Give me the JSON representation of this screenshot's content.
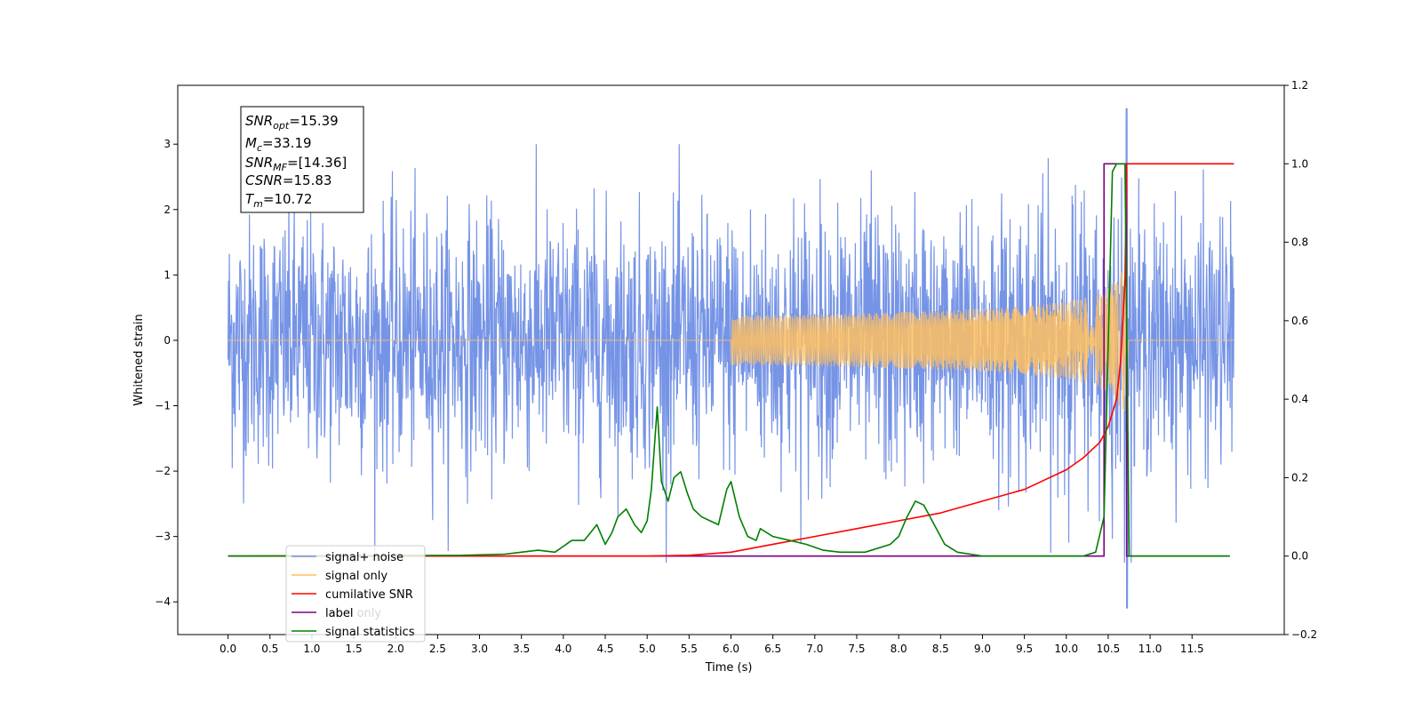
{
  "chart_data": {
    "type": "line",
    "xlabel": "Time (s)",
    "ylabel": "Whitened strain",
    "xlim": [
      -0.6,
      12.6
    ],
    "ylim_left": [
      -4.5,
      3.9
    ],
    "ylim_right": [
      -0.2,
      1.2
    ],
    "xticks": [
      "0.0",
      "0.5",
      "1.0",
      "1.5",
      "2.0",
      "2.5",
      "3.0",
      "3.5",
      "4.0",
      "4.5",
      "5.0",
      "5.5",
      "6.0",
      "6.5",
      "7.0",
      "7.5",
      "8.0",
      "8.5",
      "9.0",
      "9.5",
      "10.0",
      "10.5",
      "11.0",
      "11.5"
    ],
    "yticks_left": [
      "3",
      "2",
      "1",
      "0",
      "−1",
      "−2",
      "−3",
      "−4"
    ],
    "yticks_right": [
      "1.2",
      "1.0",
      "0.8",
      "0.6",
      "0.4",
      "0.2",
      "0.0",
      "−0.2"
    ],
    "annotation": {
      "snr_opt": {
        "sym": "SNR",
        "sub": "opt",
        "val": "=15.39"
      },
      "mc": {
        "sym": "M",
        "sub": "c",
        "val": "=33.19"
      },
      "snr_mf": {
        "sym": "SNR",
        "sub": "MF",
        "val": "=[14.36]"
      },
      "csnr": {
        "sym": "CSNR",
        "sub": "",
        "val": "=15.83"
      },
      "tm": {
        "sym": "T",
        "sub": "m",
        "val": "=10.72"
      }
    },
    "legend": {
      "placement": "lower-left",
      "entries": [
        {
          "label": "signal+ noise",
          "color": "#6f8ee5"
        },
        {
          "label": "signal only",
          "color": "#ffbf60"
        },
        {
          "label": "cumilative SNR",
          "color": "#ff0000"
        },
        {
          "label": "label",
          "color": "#800080"
        },
        {
          "label": "signal statistics",
          "color": "#008000"
        }
      ],
      "hidden_text": "label only"
    },
    "series": [
      {
        "name": "signal+ noise",
        "axis": "left",
        "color": "#6f8ee5",
        "envelope_sigma": 1.0,
        "x_range": [
          0.0,
          12.0
        ],
        "spike": {
          "x": 10.72,
          "max": 3.55,
          "min": -4.1
        }
      },
      {
        "name": "signal only",
        "axis": "left",
        "color": "#ffbf60",
        "chirp_start": 6.0,
        "merger": 10.72,
        "peak_amp": 1.3
      },
      {
        "name": "cumilative SNR",
        "axis": "right",
        "x": [
          0.0,
          3.0,
          4.0,
          5.0,
          5.5,
          6.0,
          6.5,
          7.0,
          7.5,
          8.0,
          8.5,
          9.0,
          9.5,
          10.0,
          10.2,
          10.4,
          10.5,
          10.6,
          10.65,
          10.7,
          10.72,
          12.0
        ],
        "y": [
          0.0,
          0.0,
          0.0,
          0.0,
          0.002,
          0.01,
          0.03,
          0.05,
          0.07,
          0.09,
          0.11,
          0.14,
          0.17,
          0.22,
          0.25,
          0.29,
          0.33,
          0.4,
          0.5,
          0.7,
          1.0,
          1.0
        ]
      },
      {
        "name": "label",
        "axis": "right",
        "x": [
          0.0,
          10.45,
          10.45,
          10.72,
          10.72,
          11.95
        ],
        "y": [
          0.0,
          0.0,
          1.0,
          1.0,
          0.0,
          0.0
        ]
      },
      {
        "name": "signal statistics",
        "axis": "right",
        "x": [
          0.0,
          2.8,
          3.3,
          3.5,
          3.7,
          3.9,
          4.1,
          4.25,
          4.4,
          4.5,
          4.58,
          4.65,
          4.75,
          4.85,
          4.93,
          5.0,
          5.05,
          5.12,
          5.17,
          5.25,
          5.32,
          5.4,
          5.48,
          5.55,
          5.65,
          5.75,
          5.85,
          5.95,
          6.0,
          6.1,
          6.2,
          6.3,
          6.35,
          6.5,
          6.7,
          6.9,
          7.1,
          7.3,
          7.6,
          7.9,
          8.0,
          8.1,
          8.2,
          8.3,
          8.4,
          8.55,
          8.7,
          9.0,
          10.2,
          10.35,
          10.45,
          10.55,
          10.6,
          10.7,
          10.75,
          10.8,
          11.95
        ],
        "y": [
          0.0,
          0.002,
          0.005,
          0.01,
          0.015,
          0.01,
          0.04,
          0.04,
          0.08,
          0.03,
          0.06,
          0.1,
          0.12,
          0.08,
          0.06,
          0.09,
          0.17,
          0.38,
          0.19,
          0.14,
          0.2,
          0.215,
          0.16,
          0.12,
          0.1,
          0.09,
          0.08,
          0.17,
          0.19,
          0.1,
          0.05,
          0.04,
          0.07,
          0.05,
          0.04,
          0.03,
          0.015,
          0.01,
          0.01,
          0.03,
          0.05,
          0.1,
          0.14,
          0.13,
          0.09,
          0.03,
          0.01,
          0.0,
          0.0,
          0.01,
          0.1,
          0.98,
          1.0,
          1.0,
          0.0,
          0.0,
          0.0
        ]
      }
    ]
  }
}
